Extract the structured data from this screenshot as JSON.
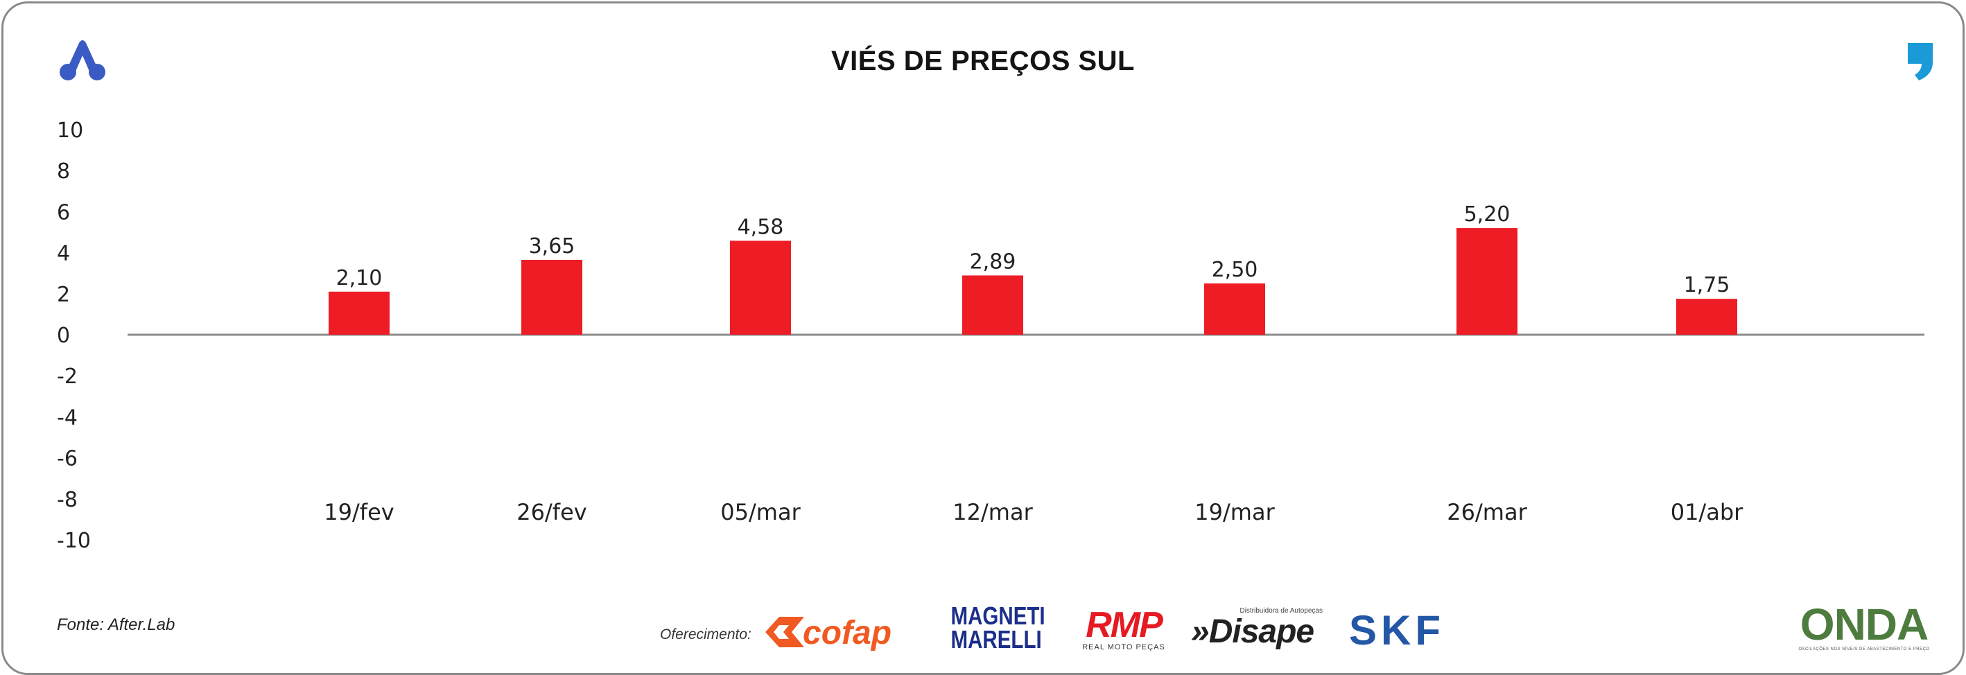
{
  "chart_data": {
    "type": "bar",
    "title": "VIÉS DE PREÇOS SUL",
    "categories": [
      "19/fev",
      "26/fev",
      "05/mar",
      "12/mar",
      "19/mar",
      "26/mar",
      "01/abr"
    ],
    "values": [
      2.1,
      3.65,
      4.58,
      2.89,
      2.5,
      5.2,
      1.75
    ],
    "data_labels": [
      "2,10",
      "3,65",
      "4,58",
      "2,89",
      "2,50",
      "5,20",
      "1,75"
    ],
    "y_ticks": [
      "10",
      "8",
      "6",
      "4",
      "2",
      "0",
      "-2",
      "-4",
      "-6",
      "-8",
      "-10"
    ],
    "ylim": [
      -10,
      10
    ],
    "grid": false,
    "legend": "none",
    "bar_color": "#ee1c25"
  },
  "footer": {
    "source": "Fonte: After.Lab",
    "sponsor_label": "Oferecimento:",
    "sponsors": {
      "cofap": "cofap",
      "magneti_line1": "MAGNETI",
      "magneti_line2": "MARELLI",
      "rmp": "RMP",
      "rmp_sub": "REAL MOTO PEÇAS",
      "disape": "»Disape",
      "disape_sub": "Distribuidora de Autopeças",
      "skf": "SKF",
      "onda": "ONDA",
      "onda_sub": "OSCILAÇÕES NOS NÍVEIS DE ABASTECIMENTO E PREÇO"
    }
  },
  "colors": {
    "bar": "#ee1c25",
    "axis": "#8c8c8c",
    "brand_blue": "#3b5bc4",
    "quote_cyan": "#1a9ad6",
    "cofap_orange": "#f05a22",
    "skf_blue": "#2457a6"
  }
}
